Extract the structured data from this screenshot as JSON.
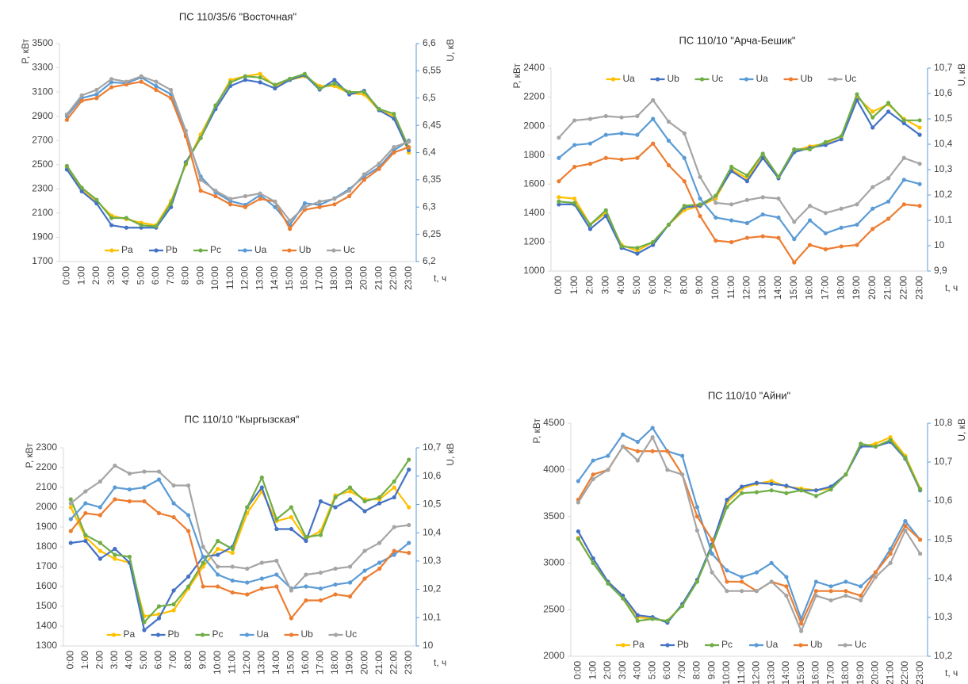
{
  "chart_data": [
    {
      "type": "line",
      "title": "ПС 110/35/6 \"Восточная\"",
      "y_label": "P, кВт",
      "y2_label": "U, кВ",
      "x_label": "t, ч",
      "categories": [
        "0:00",
        "1:00",
        "2:00",
        "3:00",
        "4:00",
        "5:00",
        "6:00",
        "7:00",
        "8:00",
        "9:00",
        "10:00",
        "11:00",
        "12:00",
        "13:00",
        "14:00",
        "15:00",
        "16:00",
        "17:00",
        "18:00",
        "19:00",
        "20:00",
        "21:00",
        "22:00",
        "23:00"
      ],
      "ylim": [
        1700,
        3500
      ],
      "yticks": [
        1700,
        1900,
        2100,
        2300,
        2500,
        2700,
        2900,
        3100,
        3300,
        3500
      ],
      "y2lim": [
        6.2,
        6.6
      ],
      "y2ticks": [
        {
          "value": 6.2,
          "label": "6,2"
        },
        {
          "value": 6.25,
          "label": "6,25"
        },
        {
          "value": 6.3,
          "label": "6,3"
        },
        {
          "value": 6.35,
          "label": "6,35"
        },
        {
          "value": 6.4,
          "label": "6,4"
        },
        {
          "value": 6.45,
          "label": "6,45"
        },
        {
          "value": 6.5,
          "label": "6,5"
        },
        {
          "value": 6.55,
          "label": "6,55"
        },
        {
          "value": 6.6,
          "label": "6,6"
        }
      ],
      "legend": "lower center",
      "y2_axis_color": "#5b9bd5",
      "series": [
        {
          "name": "Pa",
          "color": "#ffc000",
          "values": [
            2480,
            2300,
            2200,
            2080,
            2050,
            2020,
            2000,
            2200,
            2500,
            2750,
            2980,
            3200,
            3230,
            3250,
            3150,
            3200,
            3230,
            3150,
            3150,
            3090,
            3080,
            2950,
            2900,
            2600
          ]
        },
        {
          "name": "Pb",
          "color": "#4472c4",
          "values": [
            2460,
            2280,
            2180,
            2000,
            1980,
            1980,
            1980,
            2150,
            2520,
            2720,
            2960,
            3150,
            3200,
            3180,
            3130,
            3200,
            3240,
            3120,
            3200,
            3080,
            3110,
            2950,
            2880,
            2620
          ]
        },
        {
          "name": "Pc",
          "color": "#70ad47",
          "values": [
            2490,
            2310,
            2210,
            2060,
            2060,
            2000,
            1990,
            2180,
            2510,
            2720,
            2990,
            3180,
            3230,
            3220,
            3160,
            3210,
            3250,
            3130,
            3170,
            3100,
            3100,
            2960,
            2920,
            2640
          ]
        },
        {
          "name": "Ua",
          "color": "#5b9bd5",
          "axis": "y2",
          "values": [
            6.467,
            6.5,
            6.507,
            6.529,
            6.527,
            6.538,
            6.522,
            6.507,
            6.433,
            6.356,
            6.327,
            6.311,
            6.304,
            6.322,
            6.3,
            6.267,
            6.307,
            6.304,
            6.316,
            6.333,
            6.356,
            6.373,
            6.404,
            6.422
          ]
        },
        {
          "name": "Ub",
          "color": "#ed7d31",
          "axis": "y2",
          "values": [
            6.46,
            6.495,
            6.5,
            6.52,
            6.525,
            6.53,
            6.515,
            6.5,
            6.43,
            6.33,
            6.32,
            6.305,
            6.3,
            6.315,
            6.31,
            6.26,
            6.295,
            6.3,
            6.305,
            6.32,
            6.35,
            6.37,
            6.4,
            6.41
          ]
        },
        {
          "name": "Uc",
          "color": "#a5a5a5",
          "axis": "y2",
          "values": [
            6.47,
            6.505,
            6.515,
            6.535,
            6.53,
            6.54,
            6.53,
            6.515,
            6.44,
            6.35,
            6.33,
            6.315,
            6.32,
            6.325,
            6.31,
            6.275,
            6.3,
            6.31,
            6.315,
            6.33,
            6.36,
            6.38,
            6.41,
            6.42
          ]
        }
      ]
    },
    {
      "type": "line",
      "title": "ПС 110/10 \"Арча-Бешик\"",
      "y_label": "P, кВт",
      "y2_label": "U, кВ",
      "x_label": "t, ч",
      "categories": [
        "0:00",
        "1:00",
        "2:00",
        "3:00",
        "4:00",
        "5:00",
        "6:00",
        "7:00",
        "8:00",
        "9:00",
        "10:00",
        "11:00",
        "12:00",
        "13:00",
        "14:00",
        "15:00",
        "16:00",
        "17:00",
        "18:00",
        "19:00",
        "20:00",
        "21:00",
        "22:00",
        "23:00"
      ],
      "ylim": [
        1000,
        2400
      ],
      "yticks": [
        1000,
        1200,
        1400,
        1600,
        1800,
        2000,
        2200,
        2400
      ],
      "y2lim": [
        9.9,
        10.7
      ],
      "y2ticks": [
        {
          "value": 9.9,
          "label": "9,9"
        },
        10,
        {
          "value": 10.1,
          "label": "10,1"
        },
        {
          "value": 10.2,
          "label": "10,2"
        },
        {
          "value": 10.3,
          "label": "10,3"
        },
        {
          "value": 10.4,
          "label": "10,4"
        },
        {
          "value": 10.5,
          "label": "10,5"
        },
        {
          "value": 10.6,
          "label": "10,6"
        },
        {
          "value": 10.7,
          "label": "10,7"
        }
      ],
      "legend": "upper center",
      "y2_axis_color": "#5b9bd5",
      "series": [
        {
          "name": "Ua",
          "color": "#ffc000",
          "values": [
            1510,
            1500,
            1320,
            1400,
            1180,
            1140,
            1200,
            1320,
            1420,
            1450,
            1500,
            1700,
            1640,
            1800,
            1650,
            1830,
            1860,
            1880,
            1930,
            2200,
            2100,
            2150,
            2050,
            1990
          ]
        },
        {
          "name": "Ub",
          "color": "#4472c4",
          "values": [
            1460,
            1460,
            1290,
            1380,
            1160,
            1120,
            1180,
            1320,
            1440,
            1450,
            1520,
            1690,
            1620,
            1780,
            1640,
            1820,
            1850,
            1870,
            1910,
            2180,
            1990,
            2100,
            2020,
            1940
          ]
        },
        {
          "name": "Uc",
          "color": "#70ad47",
          "values": [
            1480,
            1470,
            1320,
            1420,
            1170,
            1160,
            1200,
            1320,
            1450,
            1460,
            1520,
            1720,
            1660,
            1810,
            1650,
            1840,
            1840,
            1890,
            1930,
            2220,
            2060,
            2160,
            2040,
            2040
          ]
        },
        {
          "name": "Ua",
          "color": "#5b9bd5",
          "axis": "y2",
          "values": [
            10.346,
            10.397,
            10.403,
            10.437,
            10.443,
            10.437,
            10.5,
            10.414,
            10.346,
            10.186,
            10.111,
            10.1,
            10.089,
            10.123,
            10.111,
            10.026,
            10.1,
            10.049,
            10.071,
            10.083,
            10.146,
            10.174,
            10.26,
            10.243
          ]
        },
        {
          "name": "Ub",
          "color": "#ed7d31",
          "axis": "y2",
          "values": [
            10.254,
            10.311,
            10.323,
            10.346,
            10.34,
            10.346,
            10.403,
            10.317,
            10.254,
            10.117,
            10.02,
            10.014,
            10.031,
            10.037,
            10.031,
            9.934,
            10.003,
            9.986,
            9.997,
            10.003,
            10.066,
            10.106,
            10.163,
            10.157
          ]
        },
        {
          "name": "Uc",
          "color": "#a5a5a5",
          "axis": "y2",
          "values": [
            10.426,
            10.494,
            10.5,
            10.511,
            10.506,
            10.511,
            10.574,
            10.489,
            10.443,
            10.271,
            10.169,
            10.163,
            10.18,
            10.191,
            10.186,
            10.094,
            10.157,
            10.129,
            10.146,
            10.163,
            10.231,
            10.266,
            10.346,
            10.323
          ]
        }
      ]
    },
    {
      "type": "line",
      "title": "ПС 110/10 \"Кыргызская\"",
      "y_label": "P, кВт",
      "y2_label": "U, кВ",
      "x_label": "t, ч",
      "categories": [
        "0:00",
        "1:00",
        "2:00",
        "3:00",
        "4:00",
        "5:00",
        "6:00",
        "7:00",
        "8:00",
        "9:00",
        "10:00",
        "11:00",
        "12:00",
        "13:00",
        "14:00",
        "15:00",
        "16:00",
        "17:00",
        "18:00",
        "19:00",
        "20:00",
        "21:00",
        "22:00",
        "23:00"
      ],
      "ylim": [
        1300,
        2300
      ],
      "yticks": [
        1300,
        1400,
        1500,
        1600,
        1700,
        1800,
        1900,
        2000,
        2100,
        2200,
        2300
      ],
      "y2lim": [
        10,
        10.7
      ],
      "y2ticks": [
        10,
        {
          "value": 10.1,
          "label": "10,1"
        },
        {
          "value": 10.2,
          "label": "10,2"
        },
        {
          "value": 10.3,
          "label": "10,3"
        },
        {
          "value": 10.4,
          "label": "10,4"
        },
        {
          "value": 10.5,
          "label": "10,5"
        },
        {
          "value": 10.6,
          "label": "10,6"
        },
        {
          "value": 10.7,
          "label": "10,7"
        }
      ],
      "legend": "lower center",
      "y2_axis_color": "#5b9bd5",
      "series": [
        {
          "name": "Pa",
          "color": "#ffc000",
          "values": [
            2000,
            1850,
            1780,
            1740,
            1720,
            1450,
            1460,
            1480,
            1590,
            1700,
            1790,
            1770,
            1970,
            2080,
            1930,
            1950,
            1840,
            1880,
            2060,
            2080,
            2040,
            2040,
            2100,
            2000
          ]
        },
        {
          "name": "Pb",
          "color": "#4472c4",
          "values": [
            1820,
            1830,
            1740,
            1790,
            1720,
            1380,
            1440,
            1580,
            1650,
            1750,
            1760,
            1800,
            2000,
            2100,
            1890,
            1890,
            1830,
            2030,
            2000,
            2040,
            1980,
            2020,
            2050,
            2190
          ]
        },
        {
          "name": "Pc",
          "color": "#70ad47",
          "values": [
            2040,
            1860,
            1820,
            1760,
            1750,
            1420,
            1500,
            1510,
            1600,
            1720,
            1830,
            1790,
            2000,
            2150,
            1940,
            2000,
            1850,
            1860,
            2050,
            2100,
            2030,
            2050,
            2130,
            2240
          ]
        },
        {
          "name": "Ua",
          "color": "#5b9bd5",
          "axis": "y2",
          "values": [
            10.448,
            10.504,
            10.49,
            10.56,
            10.553,
            10.56,
            10.588,
            10.504,
            10.462,
            10.315,
            10.252,
            10.231,
            10.224,
            10.238,
            10.252,
            10.203,
            10.21,
            10.203,
            10.217,
            10.224,
            10.266,
            10.294,
            10.322,
            10.364
          ]
        },
        {
          "name": "Ub",
          "color": "#ed7d31",
          "axis": "y2",
          "values": [
            10.406,
            10.469,
            10.462,
            10.518,
            10.511,
            10.511,
            10.469,
            10.455,
            10.406,
            10.21,
            10.21,
            10.189,
            10.182,
            10.203,
            10.21,
            10.098,
            10.161,
            10.161,
            10.182,
            10.175,
            10.238,
            10.273,
            10.336,
            10.329
          ]
        },
        {
          "name": "Uc",
          "color": "#a5a5a5",
          "axis": "y2",
          "values": [
            10.504,
            10.546,
            10.581,
            10.637,
            10.609,
            10.616,
            10.616,
            10.567,
            10.567,
            10.35,
            10.28,
            10.28,
            10.273,
            10.294,
            10.301,
            10.196,
            10.252,
            10.259,
            10.273,
            10.28,
            10.336,
            10.364,
            10.42,
            10.427
          ]
        }
      ]
    },
    {
      "type": "line",
      "title": "ПС 110/10 \"Айни\"",
      "y_label": "P, кВт",
      "y2_label": "U, кВ",
      "x_label": "t, ч",
      "categories": [
        "0:00",
        "1:00",
        "2:00",
        "3:00",
        "4:00",
        "5:00",
        "6:00",
        "7:00",
        "8:00",
        "9:00",
        "10:00",
        "11:00",
        "12:00",
        "13:00",
        "14:00",
        "15:00",
        "16:00",
        "17:00",
        "18:00",
        "19:00",
        "20:00",
        "21:00",
        "22:00",
        "23:00"
      ],
      "ylim": [
        2000,
        4500
      ],
      "yticks": [
        2000,
        2500,
        3000,
        3500,
        4000,
        4500
      ],
      "y2lim": [
        10.2,
        10.8
      ],
      "y2ticks": [
        {
          "value": 10.2,
          "label": "10,2"
        },
        {
          "value": 10.3,
          "label": "10,3"
        },
        {
          "value": 10.4,
          "label": "10,4"
        },
        {
          "value": 10.5,
          "label": "10,5"
        },
        {
          "value": 10.6,
          "label": "10,6"
        },
        {
          "value": 10.7,
          "label": "10,7"
        },
        {
          "value": 10.8,
          "label": "10,8"
        }
      ],
      "legend": "lower center",
      "y2_axis_color": "#5b9bd5",
      "series": [
        {
          "name": "Pa",
          "color": "#ffc000",
          "values": [
            3270,
            3000,
            2800,
            2650,
            2420,
            2400,
            2380,
            2550,
            2800,
            3200,
            3650,
            3800,
            3850,
            3880,
            3820,
            3800,
            3780,
            3800,
            3950,
            4250,
            4280,
            4350,
            4150,
            3800
          ]
        },
        {
          "name": "Pb",
          "color": "#4472c4",
          "values": [
            3340,
            3050,
            2800,
            2650,
            2440,
            2420,
            2360,
            2560,
            2820,
            3200,
            3680,
            3820,
            3860,
            3850,
            3830,
            3780,
            3780,
            3820,
            3950,
            4250,
            4250,
            4300,
            4120,
            3780
          ]
        },
        {
          "name": "Pc",
          "color": "#70ad47",
          "values": [
            3260,
            3000,
            2780,
            2620,
            2380,
            2400,
            2380,
            2540,
            2800,
            3180,
            3600,
            3750,
            3760,
            3780,
            3750,
            3780,
            3720,
            3790,
            3950,
            4280,
            4250,
            4320,
            4130,
            3790
          ]
        },
        {
          "name": "Ua",
          "color": "#5b9bd5",
          "axis": "y2",
          "values": [
            10.651,
            10.704,
            10.716,
            10.771,
            10.752,
            10.788,
            10.728,
            10.716,
            10.584,
            10.464,
            10.421,
            10.404,
            10.416,
            10.44,
            10.404,
            10.296,
            10.392,
            10.38,
            10.392,
            10.38,
            10.416,
            10.476,
            10.548,
            10.5
          ]
        },
        {
          "name": "Ub",
          "color": "#ed7d31",
          "axis": "y2",
          "values": [
            10.603,
            10.668,
            10.68,
            10.74,
            10.728,
            10.728,
            10.728,
            10.668,
            10.56,
            10.5,
            10.392,
            10.392,
            10.368,
            10.392,
            10.38,
            10.284,
            10.368,
            10.368,
            10.368,
            10.356,
            10.416,
            10.464,
            10.536,
            10.5
          ]
        },
        {
          "name": "Uc",
          "color": "#a5a5a5",
          "axis": "y2",
          "values": [
            10.596,
            10.656,
            10.68,
            10.74,
            10.704,
            10.764,
            10.68,
            10.668,
            10.524,
            10.416,
            10.368,
            10.368,
            10.368,
            10.392,
            10.356,
            10.265,
            10.356,
            10.344,
            10.356,
            10.344,
            10.404,
            10.44,
            10.524,
            10.464
          ]
        }
      ]
    }
  ]
}
